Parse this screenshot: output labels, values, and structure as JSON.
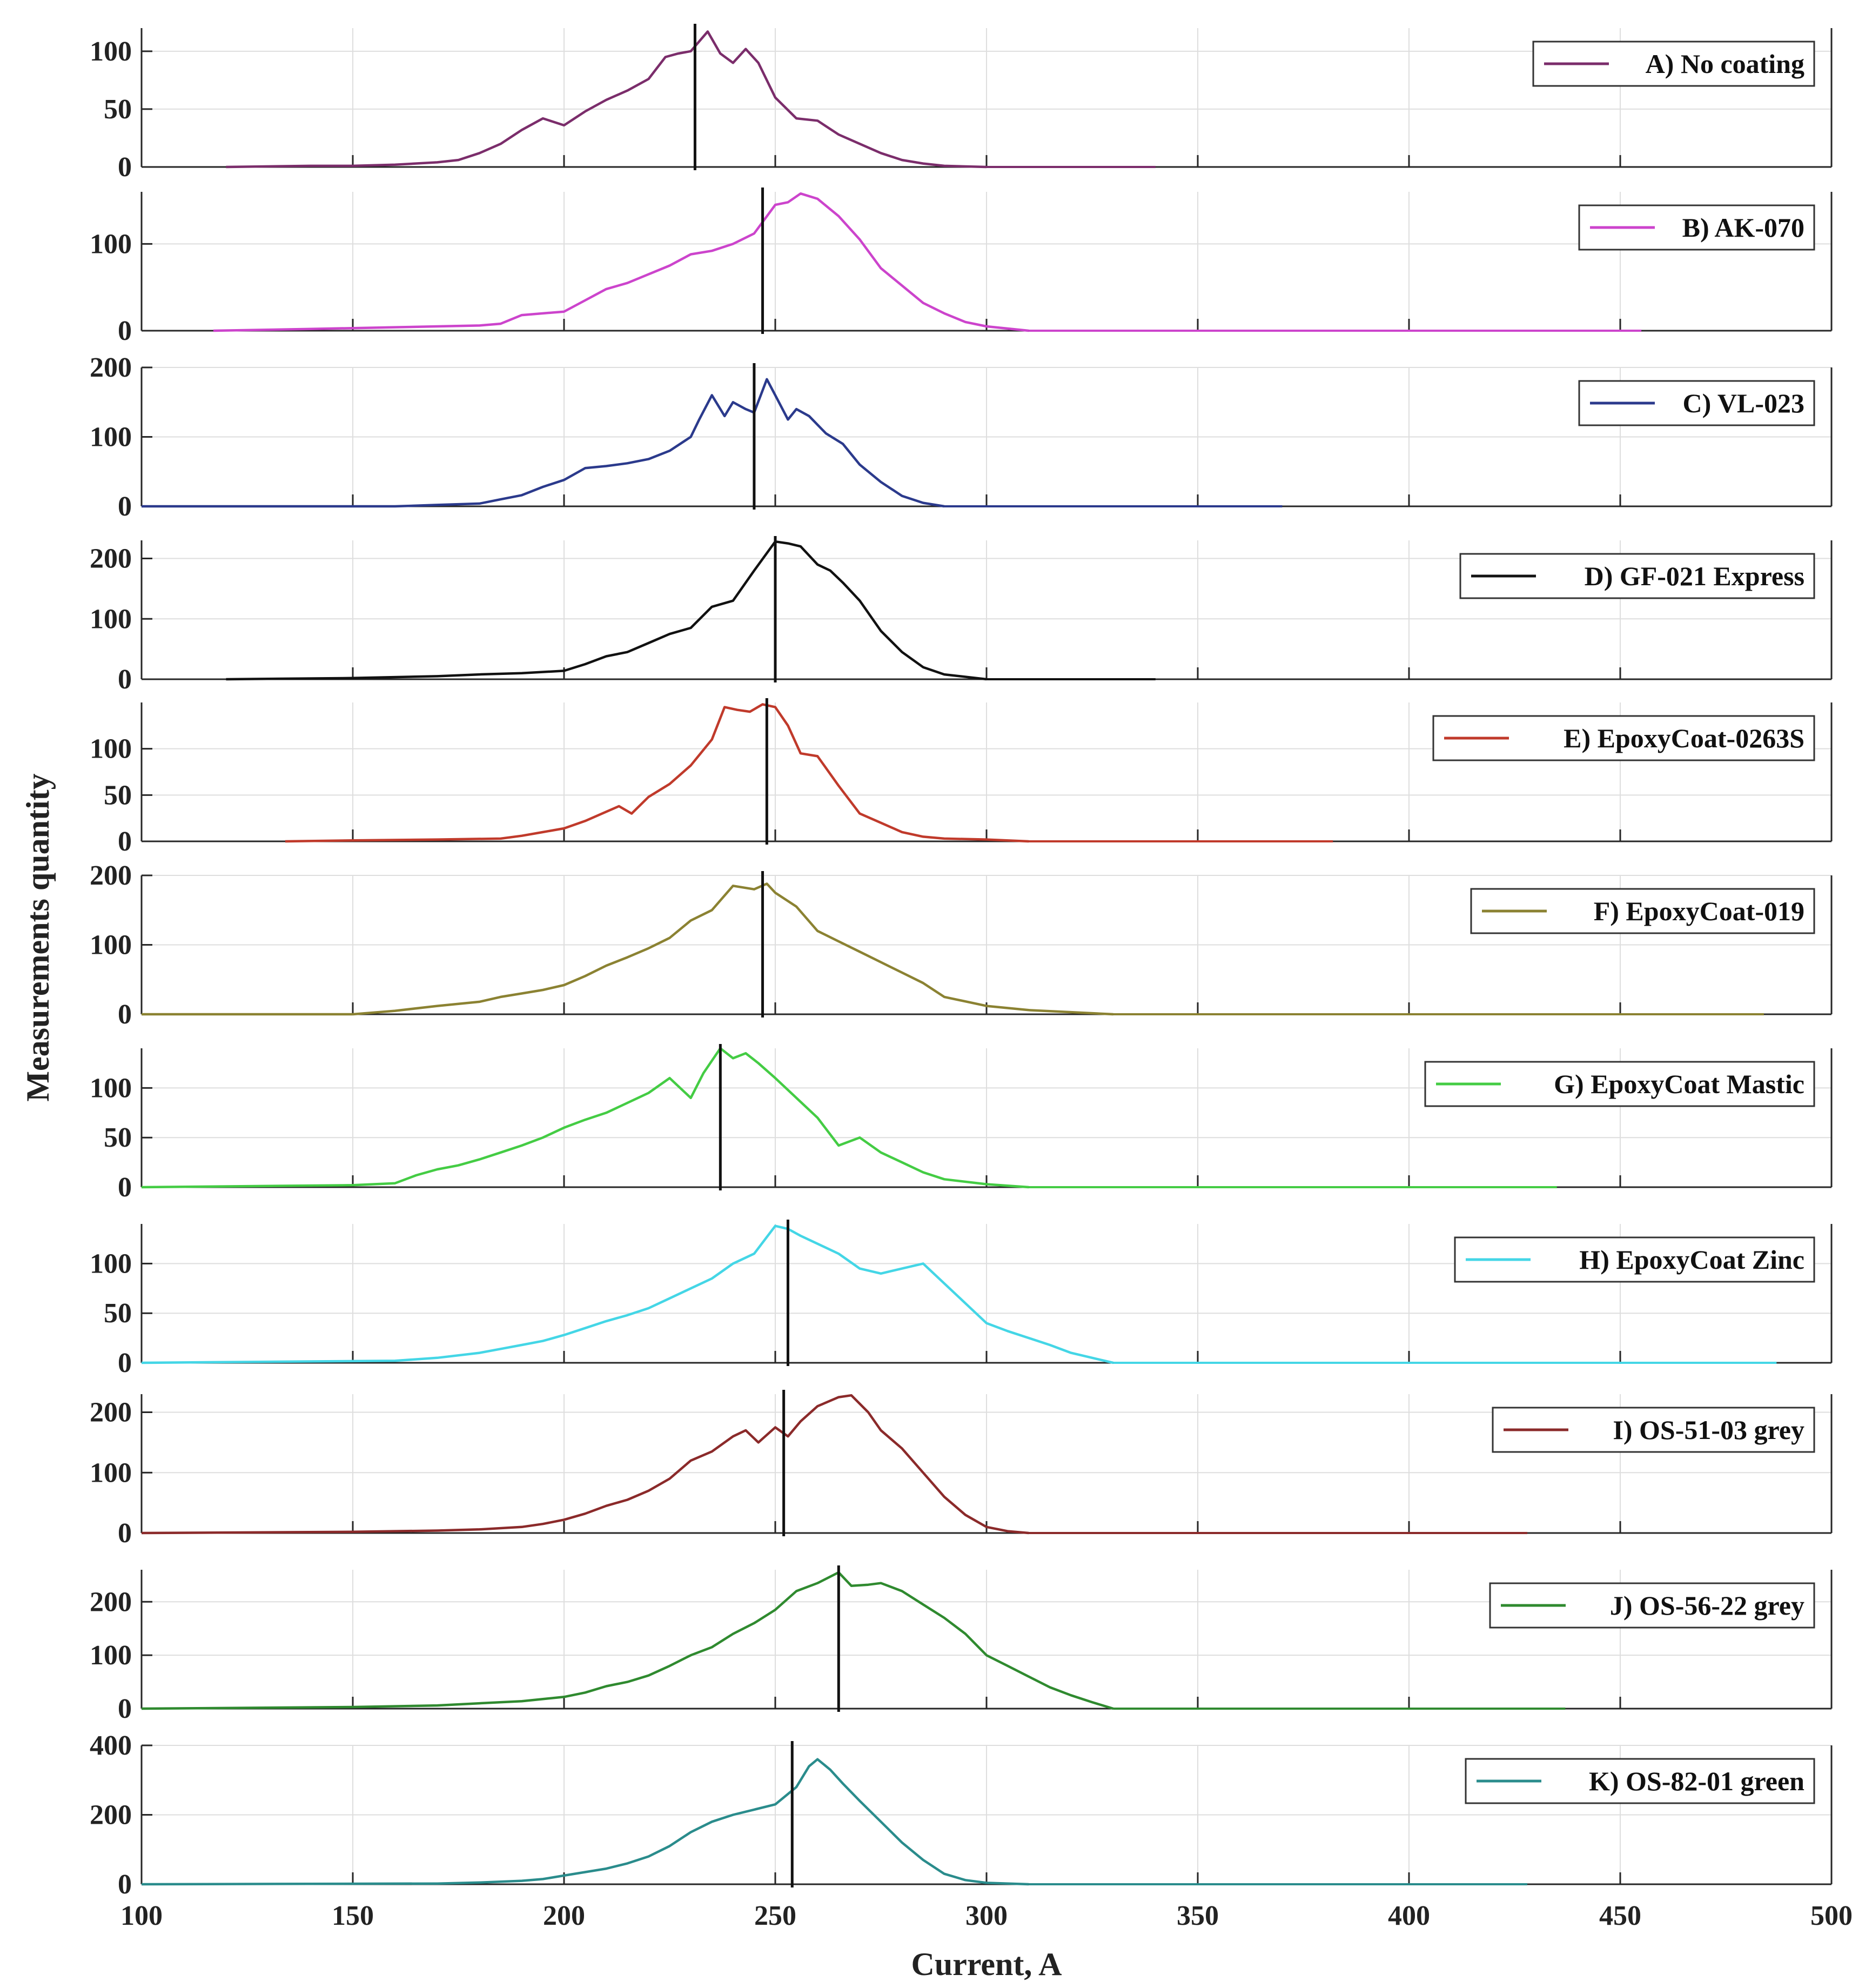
{
  "chart_data": {
    "type": "line",
    "xlabel": "Current, A",
    "ylabel": "Measurements quantity",
    "xlim": [
      100,
      500
    ],
    "xticks": [
      100,
      150,
      200,
      250,
      300,
      350,
      400,
      450,
      500
    ],
    "x_tick_labels": [
      "100",
      "150",
      "200",
      "250",
      "300",
      "350",
      "400",
      "450",
      "500"
    ],
    "grid": true,
    "legend_position": "top-right of each panel",
    "panels": [
      {
        "legend": "A) No coating",
        "color": "#7b2d6b",
        "ylim": [
          0,
          120
        ],
        "yticks": [
          0,
          50,
          100
        ],
        "ytick_labels": [
          "0",
          "50",
          "100"
        ],
        "x_end": 340,
        "marker_x": 231,
        "x": [
          120,
          140,
          150,
          160,
          170,
          175,
          180,
          185,
          190,
          195,
          200,
          205,
          210,
          215,
          220,
          224,
          227,
          230,
          234,
          237,
          240,
          243,
          246,
          250,
          255,
          260,
          265,
          270,
          275,
          280,
          285,
          290,
          300
        ],
        "y": [
          0,
          1,
          1,
          2,
          4,
          6,
          12,
          20,
          32,
          42,
          36,
          48,
          58,
          66,
          76,
          95,
          98,
          100,
          117,
          98,
          90,
          102,
          90,
          60,
          42,
          40,
          28,
          20,
          12,
          6,
          3,
          1,
          0
        ]
      },
      {
        "legend": "B) AK-070",
        "color": "#cc44cc",
        "ylim": [
          0,
          160
        ],
        "yticks": [
          0,
          100
        ],
        "ytick_labels": [
          "0",
          "100"
        ],
        "x_end": 455,
        "marker_x": 247,
        "x": [
          117,
          140,
          150,
          160,
          170,
          180,
          185,
          190,
          200,
          205,
          210,
          215,
          220,
          225,
          230,
          235,
          240,
          245,
          250,
          253,
          256,
          260,
          265,
          270,
          275,
          280,
          285,
          290,
          295,
          300,
          310
        ],
        "y": [
          0,
          2,
          3,
          4,
          5,
          6,
          8,
          18,
          22,
          35,
          48,
          55,
          65,
          75,
          88,
          92,
          100,
          112,
          145,
          148,
          158,
          152,
          132,
          105,
          72,
          52,
          32,
          20,
          10,
          5,
          0
        ]
      },
      {
        "legend": "C) VL-023",
        "color": "#2b3a8c",
        "ylim": [
          0,
          200
        ],
        "yticks": [
          0,
          100,
          200
        ],
        "ytick_labels": [
          "0",
          "100",
          "200"
        ],
        "x_end": 370,
        "marker_x": 245,
        "x": [
          100,
          160,
          170,
          180,
          185,
          190,
          195,
          200,
          205,
          210,
          215,
          220,
          225,
          230,
          232,
          235,
          238,
          240,
          243,
          245,
          248,
          250,
          253,
          255,
          258,
          262,
          266,
          270,
          275,
          280,
          285,
          290
        ],
        "y": [
          0,
          0,
          2,
          4,
          10,
          16,
          28,
          38,
          55,
          58,
          62,
          68,
          80,
          100,
          125,
          160,
          130,
          150,
          140,
          135,
          183,
          160,
          125,
          140,
          130,
          105,
          90,
          60,
          35,
          15,
          5,
          0
        ]
      },
      {
        "legend": "D) GF-021 Express",
        "color": "#111111",
        "ylim": [
          0,
          230
        ],
        "yticks": [
          0,
          100,
          200
        ],
        "ytick_labels": [
          "0",
          "100",
          "200"
        ],
        "x_end": 340,
        "marker_x": 250,
        "x": [
          120,
          150,
          170,
          180,
          190,
          200,
          205,
          210,
          215,
          220,
          225,
          230,
          235,
          240,
          245,
          250,
          253,
          256,
          260,
          263,
          266,
          270,
          275,
          280,
          285,
          290,
          300
        ],
        "y": [
          0,
          2,
          5,
          8,
          10,
          14,
          25,
          38,
          45,
          60,
          75,
          85,
          120,
          130,
          180,
          228,
          225,
          220,
          190,
          180,
          160,
          130,
          80,
          45,
          20,
          8,
          0
        ]
      },
      {
        "legend": "E) EpoxyCoat-0263S",
        "color": "#c03a2b",
        "ylim": [
          0,
          150
        ],
        "yticks": [
          0,
          50,
          100
        ],
        "ytick_labels": [
          "0",
          "50",
          "100"
        ],
        "x_end": 382,
        "marker_x": 248,
        "x": [
          134,
          150,
          170,
          185,
          190,
          195,
          200,
          205,
          210,
          213,
          216,
          220,
          225,
          230,
          235,
          238,
          241,
          244,
          247,
          250,
          253,
          256,
          260,
          265,
          270,
          275,
          280,
          285,
          290,
          300,
          310
        ],
        "y": [
          0,
          1,
          2,
          3,
          6,
          10,
          14,
          22,
          32,
          38,
          30,
          48,
          62,
          82,
          110,
          145,
          142,
          140,
          148,
          145,
          125,
          95,
          92,
          60,
          30,
          20,
          10,
          5,
          3,
          2,
          0
        ]
      },
      {
        "legend": "F) EpoxyCoat-019",
        "color": "#8b8232",
        "ylim": [
          0,
          200
        ],
        "yticks": [
          0,
          100,
          200
        ],
        "ytick_labels": [
          "0",
          "100",
          "200"
        ],
        "x_end": 484,
        "marker_x": 247,
        "x": [
          100,
          150,
          160,
          170,
          180,
          185,
          190,
          195,
          200,
          205,
          210,
          215,
          220,
          225,
          230,
          235,
          240,
          245,
          248,
          250,
          255,
          260,
          265,
          270,
          275,
          280,
          285,
          290,
          300,
          310,
          320,
          330
        ],
        "y": [
          0,
          0,
          5,
          12,
          18,
          25,
          30,
          35,
          42,
          55,
          70,
          82,
          95,
          110,
          135,
          150,
          185,
          180,
          188,
          175,
          155,
          120,
          105,
          90,
          75,
          60,
          45,
          25,
          12,
          6,
          3,
          0
        ]
      },
      {
        "legend": "G) EpoxyCoat Mastic",
        "color": "#44cc44",
        "ylim": [
          0,
          140
        ],
        "yticks": [
          0,
          50,
          100
        ],
        "ytick_labels": [
          "0",
          "50",
          "100"
        ],
        "x_end": 435,
        "marker_x": 237,
        "x": [
          100,
          150,
          160,
          165,
          170,
          175,
          180,
          185,
          190,
          195,
          200,
          205,
          210,
          215,
          220,
          225,
          230,
          233,
          237,
          240,
          243,
          246,
          250,
          255,
          260,
          265,
          270,
          275,
          280,
          285,
          290,
          300,
          310
        ],
        "y": [
          0,
          2,
          4,
          12,
          18,
          22,
          28,
          35,
          42,
          50,
          60,
          68,
          75,
          85,
          95,
          110,
          90,
          115,
          140,
          130,
          135,
          125,
          110,
          90,
          70,
          42,
          50,
          35,
          25,
          15,
          8,
          3,
          0
        ]
      },
      {
        "legend": "H) EpoxyCoat Zinc",
        "color": "#44d6e6",
        "ylim": [
          0,
          140
        ],
        "yticks": [
          0,
          50,
          100
        ],
        "ytick_labels": [
          "0",
          "50",
          "100"
        ],
        "x_end": 487,
        "marker_x": 253,
        "x": [
          100,
          160,
          170,
          180,
          185,
          190,
          195,
          200,
          205,
          210,
          215,
          220,
          225,
          230,
          235,
          240,
          245,
          250,
          253,
          256,
          260,
          265,
          270,
          275,
          280,
          285,
          290,
          295,
          300,
          305,
          310,
          315,
          320,
          325,
          330
        ],
        "y": [
          0,
          2,
          5,
          10,
          14,
          18,
          22,
          28,
          35,
          42,
          48,
          55,
          65,
          75,
          85,
          100,
          110,
          138,
          135,
          128,
          120,
          110,
          95,
          90,
          95,
          100,
          80,
          60,
          40,
          32,
          25,
          18,
          10,
          5,
          0
        ]
      },
      {
        "legend": "I) OS-51-03 grey",
        "color": "#8b2a2a",
        "ylim": [
          0,
          230
        ],
        "yticks": [
          0,
          100,
          200
        ],
        "ytick_labels": [
          "0",
          "100",
          "200"
        ],
        "x_end": 428,
        "marker_x": 252,
        "x": [
          100,
          150,
          170,
          180,
          190,
          195,
          200,
          205,
          210,
          215,
          220,
          225,
          230,
          235,
          240,
          243,
          246,
          250,
          253,
          256,
          260,
          265,
          268,
          272,
          275,
          280,
          285,
          290,
          295,
          300,
          305,
          310
        ],
        "y": [
          0,
          2,
          4,
          6,
          10,
          15,
          22,
          32,
          45,
          55,
          70,
          90,
          120,
          135,
          160,
          170,
          150,
          175,
          160,
          185,
          210,
          225,
          228,
          200,
          170,
          140,
          100,
          60,
          30,
          10,
          3,
          0
        ]
      },
      {
        "legend": "J) OS-56-22 grey",
        "color": "#2f8a2f",
        "ylim": [
          0,
          260
        ],
        "yticks": [
          0,
          100,
          200
        ],
        "ytick_labels": [
          "0",
          "100",
          "200"
        ],
        "x_end": 437,
        "marker_x": 265,
        "x": [
          100,
          150,
          170,
          180,
          190,
          195,
          200,
          205,
          210,
          215,
          220,
          225,
          230,
          235,
          240,
          245,
          250,
          255,
          260,
          265,
          268,
          272,
          275,
          280,
          285,
          290,
          295,
          300,
          305,
          310,
          315,
          320,
          325,
          330
        ],
        "y": [
          0,
          3,
          6,
          10,
          14,
          18,
          22,
          30,
          42,
          50,
          62,
          80,
          100,
          115,
          140,
          160,
          185,
          220,
          235,
          255,
          230,
          232,
          235,
          220,
          195,
          170,
          140,
          100,
          80,
          60,
          40,
          25,
          12,
          0
        ]
      },
      {
        "legend": "K) OS-82-01 green",
        "color": "#2a8c8c",
        "ylim": [
          0,
          400
        ],
        "yticks": [
          0,
          200,
          400
        ],
        "ytick_labels": [
          "0",
          "200",
          "400"
        ],
        "x_end": 428,
        "marker_x": 254,
        "x": [
          100,
          170,
          180,
          190,
          195,
          200,
          205,
          210,
          215,
          220,
          225,
          230,
          235,
          240,
          245,
          250,
          255,
          258,
          260,
          263,
          266,
          270,
          275,
          280,
          285,
          290,
          295,
          300,
          310
        ],
        "y": [
          0,
          2,
          5,
          10,
          15,
          25,
          35,
          45,
          60,
          80,
          110,
          150,
          180,
          200,
          215,
          230,
          280,
          340,
          360,
          330,
          290,
          240,
          180,
          120,
          70,
          30,
          12,
          4,
          0
        ]
      }
    ]
  }
}
